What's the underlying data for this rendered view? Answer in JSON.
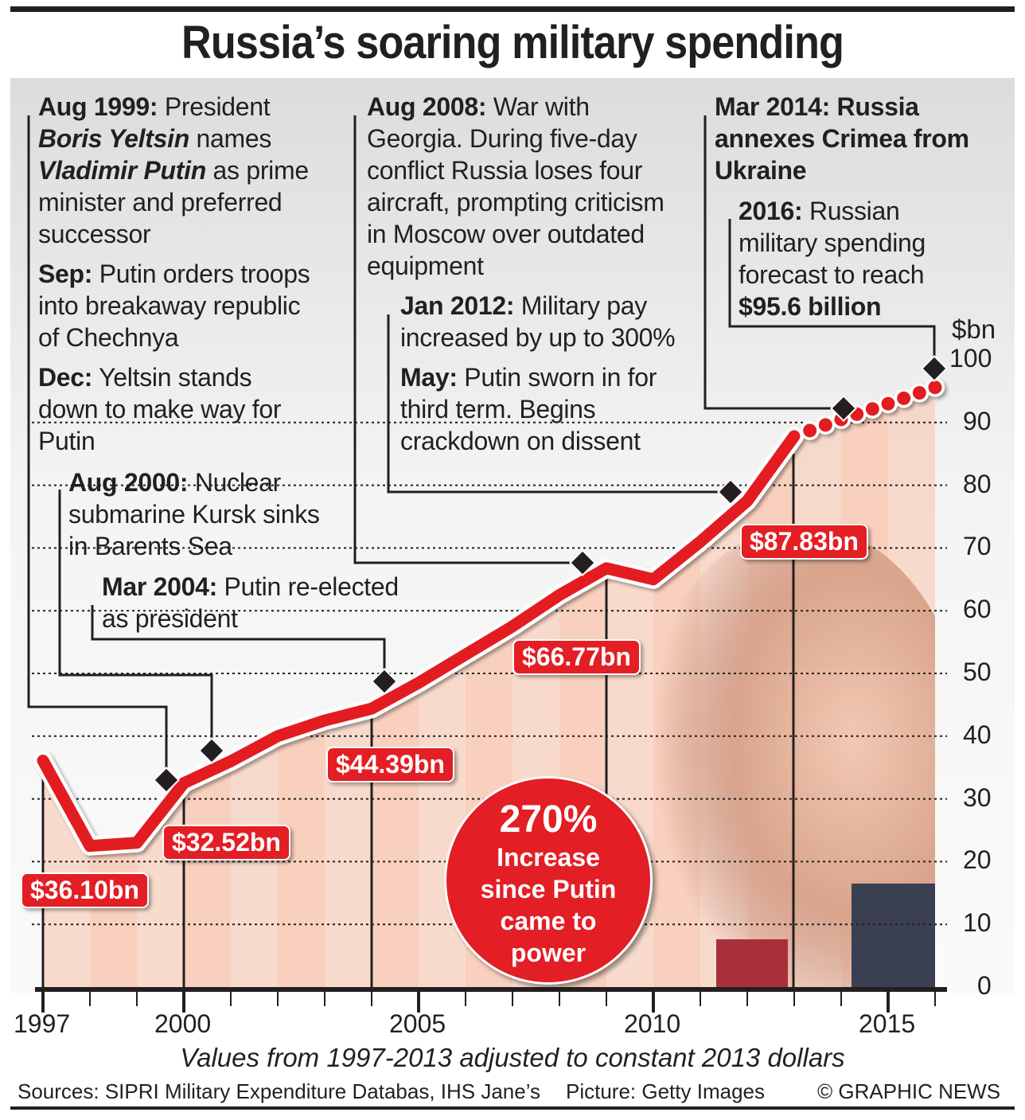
{
  "title": "Russia’s soaring military spending",
  "annotations": {
    "a1999": {
      "date": "Aug 1999:",
      "pre": " President ",
      "name1": "Boris Yeltsin",
      "mid": " names ",
      "name2": "Vladimir Putin",
      "post": " as prime minister and preferred successor"
    },
    "sep": {
      "date": "Sep:",
      "text": " Putin orders troops into breakaway republic of Chechnya"
    },
    "dec": {
      "date": "Dec:",
      "text": " Yeltsin stands down to make way for Putin"
    },
    "a2000": {
      "date": "Aug 2000:",
      "text": " Nuclear submarine Kursk sinks in Barents Sea"
    },
    "a2004": {
      "date": "Mar 2004:",
      "text": " Putin re-elected as president"
    },
    "a2008": {
      "date": "Aug 2008:",
      "text": " War with Georgia. During five-day conflict Russia loses four aircraft, prompting criticism in Moscow over outdated equipment"
    },
    "a2012": {
      "date": "Jan 2012:",
      "text": " Military pay increased by up to 300%"
    },
    "may": {
      "date": "May:",
      "text": " Putin sworn in for third term. Begins crackdown on dissent"
    },
    "a2014": {
      "text": "Mar 2014: Russia annexes Crimea from Ukraine"
    },
    "a2016": {
      "date": "2016:",
      "text": " Russian military spending forecast to reach ",
      "value": "$95.6 billion"
    }
  },
  "callout": {
    "big": "270%",
    "small": "Increase since Putin came to power"
  },
  "footer": {
    "note": "Values from 1997-2013 adjusted to constant 2013 dollars",
    "sources": "Sources: SIPRI Military Expenditure Databas, IHS Jane’s",
    "picture": "Picture: Getty Images",
    "credit": "© GRAPHIC NEWS"
  },
  "colors": {
    "line": "#e31e24",
    "text": "#231f20",
    "area": "#f8d0bd"
  },
  "chart_data": {
    "type": "line",
    "ylabel": "$bn",
    "ylim": [
      0,
      100
    ],
    "yticks": [
      "0",
      "10",
      "20",
      "30",
      "40",
      "50",
      "60",
      "70",
      "80",
      "90",
      "100"
    ],
    "xlim": [
      1997,
      2016
    ],
    "xticks": [
      "1997",
      "2000",
      "2005",
      "2010",
      "2015"
    ],
    "grid": "dotted horizontal",
    "series": [
      {
        "style": "solid",
        "x": [
          1997,
          1998,
          1999,
          2000,
          2001,
          2002,
          2003,
          2004,
          2005,
          2006,
          2007,
          2008,
          2009,
          2010,
          2011,
          2012,
          2013
        ],
        "values": [
          36.1,
          22.5,
          23,
          32.52,
          36,
          40,
          42.5,
          44.39,
          48.5,
          53,
          57.5,
          62.5,
          66.77,
          65,
          71,
          77.5,
          87.83
        ]
      },
      {
        "style": "dotted forecast",
        "x": [
          2013,
          2014,
          2015,
          2016
        ],
        "values": [
          87.83,
          90.5,
          93,
          95.6
        ]
      }
    ],
    "data_labels": [
      {
        "x": 1997,
        "text": "$36.10bn"
      },
      {
        "x": 2000,
        "text": "$32.52bn"
      },
      {
        "x": 2004,
        "text": "$44.39bn"
      },
      {
        "x": 2009,
        "text": "$66.77bn"
      },
      {
        "x": 2013,
        "text": "$87.83bn"
      }
    ]
  }
}
